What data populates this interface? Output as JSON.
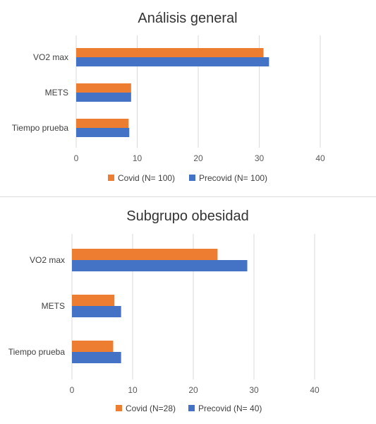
{
  "chart_data": [
    {
      "type": "bar",
      "orientation": "horizontal",
      "title": "Análisis general",
      "categories": [
        "VO2 max",
        "METS",
        "Tiempo prueba"
      ],
      "series": [
        {
          "name": "Covid (N= 100)",
          "color": "#ED7D31",
          "values": [
            30.7,
            9.0,
            8.6
          ]
        },
        {
          "name": "Precovid (N= 100)",
          "color": "#4472C4",
          "values": [
            31.6,
            9.0,
            8.7
          ]
        }
      ],
      "xlim": [
        0,
        40
      ],
      "xticks": [
        "0",
        "10",
        "20",
        "30",
        "40"
      ],
      "grid": true,
      "legend_position": "bottom"
    },
    {
      "type": "bar",
      "orientation": "horizontal",
      "title": "Subgrupo obesidad",
      "categories": [
        "VO2 max",
        "METS",
        "Tiempo prueba"
      ],
      "series": [
        {
          "name": "Covid (N=28)",
          "color": "#ED7D31",
          "values": [
            24.0,
            7.0,
            6.8
          ]
        },
        {
          "name": "Precovid (N= 40)",
          "color": "#4472C4",
          "values": [
            28.9,
            8.1,
            8.1
          ]
        }
      ],
      "xlim": [
        0,
        40
      ],
      "xticks": [
        "0",
        "10",
        "20",
        "30",
        "40"
      ],
      "grid": true,
      "legend_position": "bottom"
    }
  ]
}
